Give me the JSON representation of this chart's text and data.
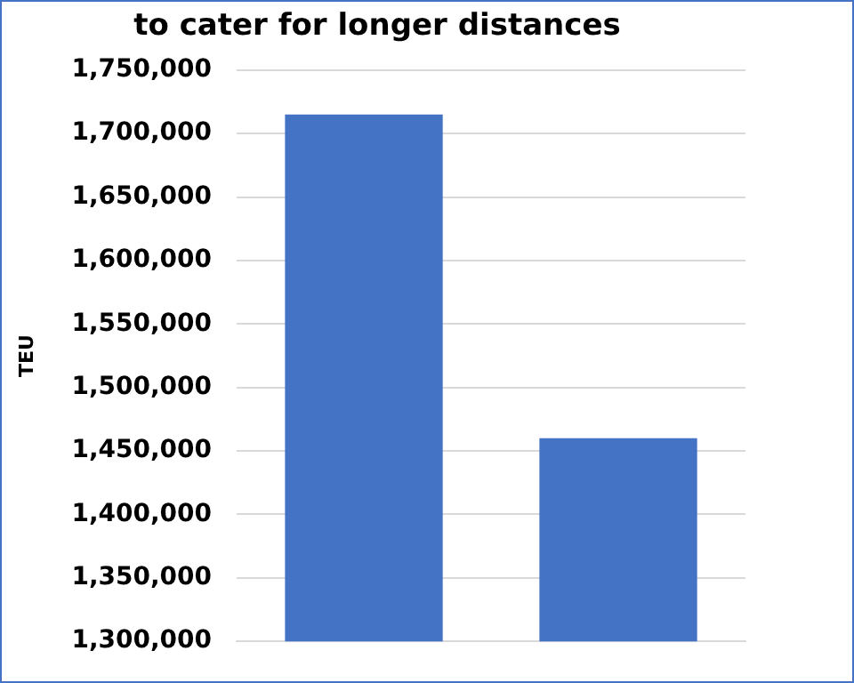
{
  "chart_data": {
    "type": "bar",
    "title": "to cater for longer distances",
    "ylabel": "TEU",
    "categories": [
      null,
      null
    ],
    "values": [
      1715000,
      1460000
    ],
    "color": "#4472c4",
    "ylim": [
      1300000,
      1750000
    ],
    "yticks": [
      {
        "value": 1300000,
        "label": "1,300,000"
      },
      {
        "value": 1350000,
        "label": "1,350,000"
      },
      {
        "value": 1400000,
        "label": "1,400,000"
      },
      {
        "value": 1450000,
        "label": "1,450,000"
      },
      {
        "value": 1500000,
        "label": "1,500,000"
      },
      {
        "value": 1550000,
        "label": "1,550,000"
      },
      {
        "value": 1600000,
        "label": "1,600,000"
      },
      {
        "value": 1650000,
        "label": "1,650,000"
      },
      {
        "value": 1700000,
        "label": "1,700,000"
      },
      {
        "value": 1750000,
        "label": "1,750,000"
      }
    ],
    "grid": "y"
  }
}
